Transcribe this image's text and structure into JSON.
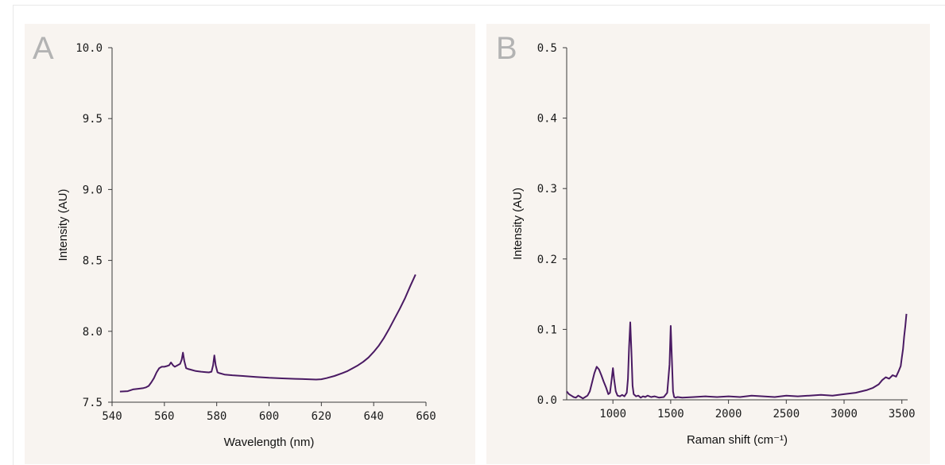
{
  "chart_data": [
    {
      "panel_label": "A",
      "type": "line",
      "xlabel": "Wavelength (nm)",
      "ylabel": "Intensity (AU)",
      "xlim": [
        540,
        660
      ],
      "ylim": [
        7.5,
        10.0
      ],
      "xticks": [
        540,
        560,
        580,
        600,
        620,
        640,
        660
      ],
      "xtick_labels": [
        "540",
        "560",
        "580",
        "600",
        "620",
        "640",
        "660"
      ],
      "yticks": [
        7.5,
        8.0,
        8.5,
        9.0,
        9.5,
        10.0
      ],
      "ytick_labels": [
        "7.5",
        "8.0",
        "8.5",
        "9.0",
        "9.5",
        "10.0"
      ],
      "grid": false,
      "color": "#4a1a63",
      "series": [
        {
          "x": [
            543,
            546,
            548,
            550,
            552,
            553,
            554,
            555,
            556,
            557,
            558,
            559,
            560,
            561,
            561.8,
            562.5,
            563.3,
            564,
            565,
            566,
            566.6,
            567.1,
            567.6,
            568.3,
            569,
            570,
            572,
            574,
            576,
            577,
            578,
            578.6,
            579.1,
            579.6,
            580.3,
            581,
            583,
            586,
            590,
            595,
            600,
            605,
            610,
            615,
            618,
            620,
            622,
            625,
            628,
            630,
            632,
            634,
            636,
            638,
            640,
            642,
            644,
            646,
            648,
            650,
            652,
            654,
            656
          ],
          "y": [
            7.575,
            7.578,
            7.59,
            7.595,
            7.6,
            7.605,
            7.615,
            7.64,
            7.67,
            7.71,
            7.74,
            7.75,
            7.75,
            7.755,
            7.76,
            7.78,
            7.76,
            7.75,
            7.76,
            7.77,
            7.8,
            7.85,
            7.79,
            7.74,
            7.735,
            7.73,
            7.72,
            7.715,
            7.712,
            7.71,
            7.715,
            7.76,
            7.83,
            7.76,
            7.71,
            7.705,
            7.695,
            7.69,
            7.685,
            7.678,
            7.672,
            7.668,
            7.665,
            7.662,
            7.66,
            7.662,
            7.67,
            7.685,
            7.705,
            7.72,
            7.74,
            7.76,
            7.785,
            7.815,
            7.855,
            7.9,
            7.955,
            8.02,
            8.09,
            8.16,
            8.235,
            8.32,
            8.4
          ]
        }
      ]
    },
    {
      "panel_label": "B",
      "type": "line",
      "xlabel": "Raman shift (cm⁻¹)",
      "ylabel": "Intensity (AU)",
      "xlim": [
        600,
        3550
      ],
      "ylim": [
        0.0,
        0.5
      ],
      "xticks": [
        1000,
        1500,
        2000,
        2500,
        3000,
        3500
      ],
      "xtick_labels": [
        "1000",
        "1500",
        "2000",
        "2500",
        "3000",
        "3500"
      ],
      "yticks": [
        0.0,
        0.1,
        0.2,
        0.3,
        0.4,
        0.5
      ],
      "ytick_labels": [
        "0.0",
        "0.1",
        "0.2",
        "0.3",
        "0.4",
        "0.5"
      ],
      "grid": false,
      "color": "#4a1a63",
      "series": [
        {
          "x": [
            600,
            620,
            640,
            660,
            680,
            700,
            720,
            740,
            760,
            780,
            800,
            820,
            840,
            860,
            880,
            900,
            920,
            940,
            960,
            975,
            990,
            1000,
            1010,
            1025,
            1040,
            1060,
            1080,
            1100,
            1120,
            1130,
            1140,
            1150,
            1160,
            1170,
            1180,
            1200,
            1220,
            1240,
            1260,
            1280,
            1300,
            1330,
            1360,
            1400,
            1440,
            1470,
            1490,
            1500,
            1510,
            1520,
            1530,
            1540,
            1560,
            1600,
            1700,
            1800,
            1900,
            2000,
            2100,
            2200,
            2300,
            2400,
            2500,
            2600,
            2700,
            2800,
            2900,
            3000,
            3050,
            3100,
            3150,
            3200,
            3250,
            3300,
            3330,
            3360,
            3390,
            3420,
            3450,
            3470,
            3490,
            3500,
            3510,
            3520,
            3530,
            3540
          ],
          "y": [
            0.012,
            0.008,
            0.006,
            0.004,
            0.003,
            0.006,
            0.004,
            0.002,
            0.004,
            0.006,
            0.012,
            0.025,
            0.038,
            0.047,
            0.043,
            0.035,
            0.026,
            0.018,
            0.008,
            0.01,
            0.03,
            0.045,
            0.03,
            0.012,
            0.006,
            0.005,
            0.007,
            0.005,
            0.01,
            0.03,
            0.075,
            0.11,
            0.07,
            0.02,
            0.008,
            0.005,
            0.006,
            0.003,
            0.005,
            0.004,
            0.006,
            0.004,
            0.005,
            0.003,
            0.004,
            0.01,
            0.05,
            0.105,
            0.06,
            0.012,
            0.004,
            0.003,
            0.004,
            0.003,
            0.004,
            0.005,
            0.004,
            0.005,
            0.004,
            0.006,
            0.005,
            0.004,
            0.006,
            0.005,
            0.006,
            0.007,
            0.006,
            0.008,
            0.009,
            0.01,
            0.012,
            0.014,
            0.017,
            0.022,
            0.028,
            0.032,
            0.03,
            0.035,
            0.033,
            0.04,
            0.048,
            0.06,
            0.072,
            0.09,
            0.105,
            0.122
          ]
        }
      ]
    }
  ]
}
